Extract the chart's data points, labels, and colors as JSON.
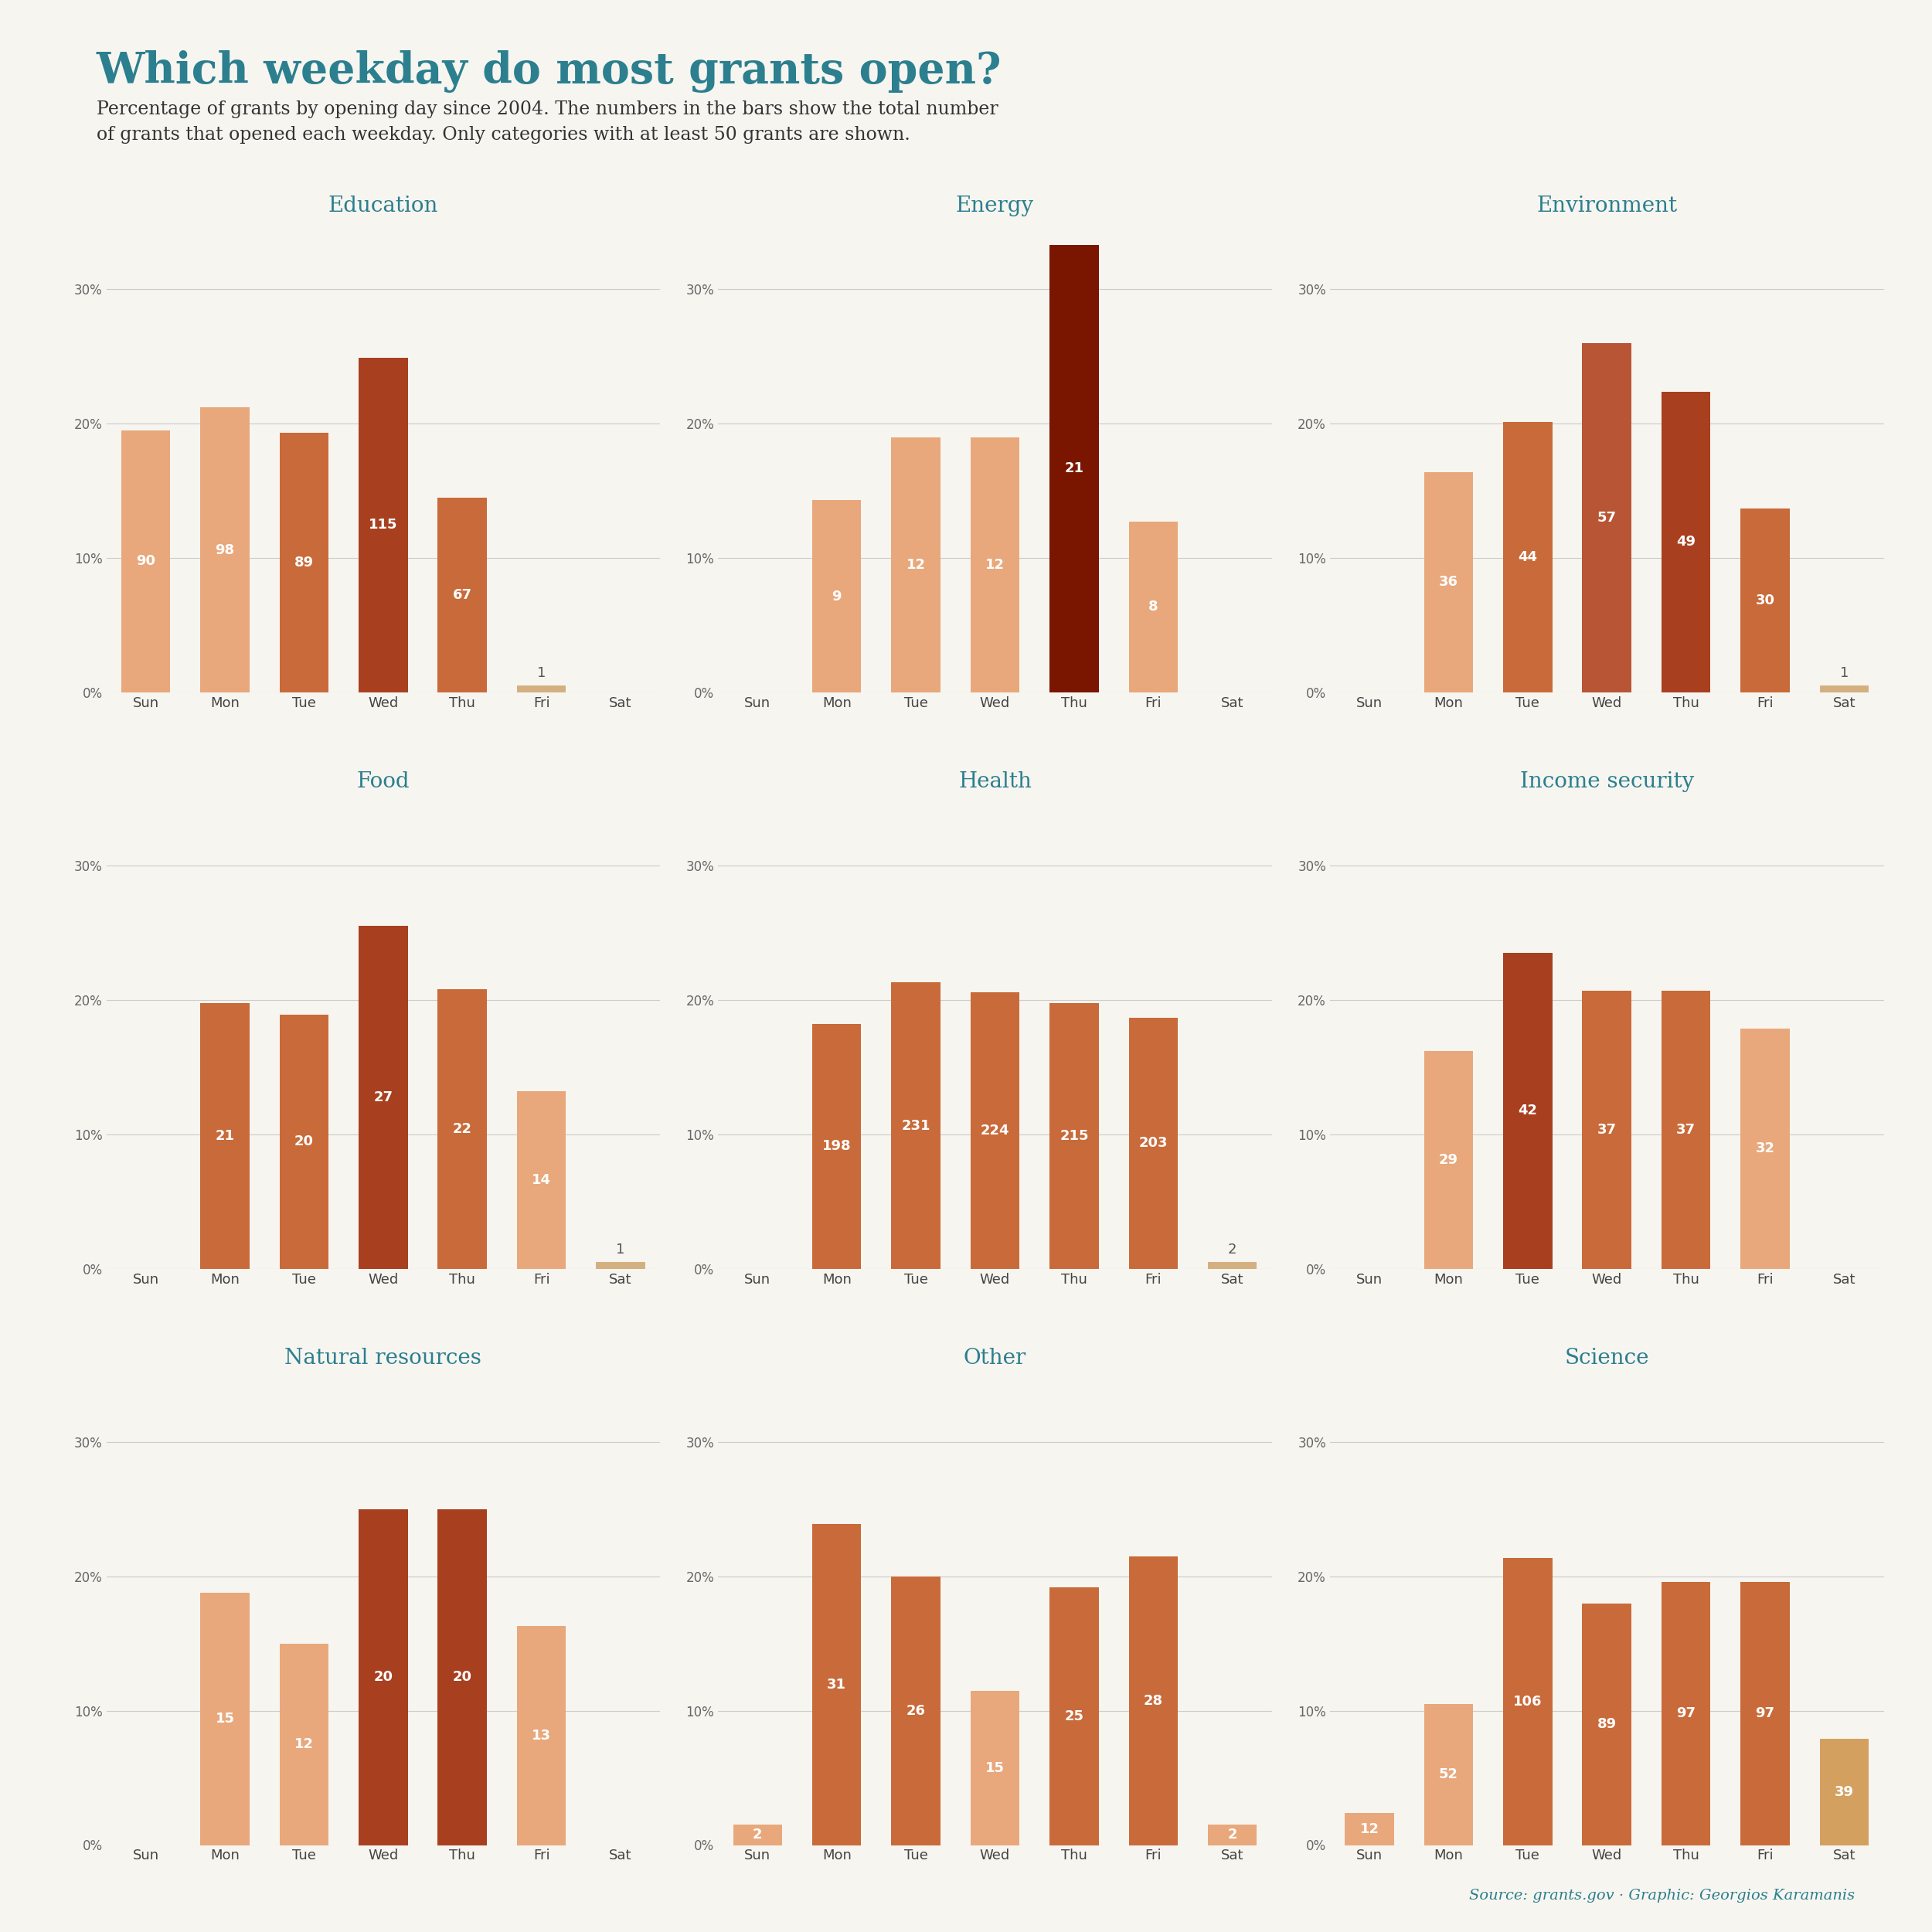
{
  "title": "Which weekday do most grants open?",
  "subtitle": "Percentage of grants by opening day since 2004. The numbers in the bars show the total number\nof grants that opened each weekday. Only categories with at least 50 grants are shown.",
  "title_color": "#2B7F8E",
  "subtitle_color": "#333333",
  "source_text": "Source: grants.gov · Graphic: Georgios Karamanis",
  "background_color": "#F7F5F0",
  "days": [
    "Sun",
    "Mon",
    "Tue",
    "Wed",
    "Thu",
    "Fri",
    "Sat"
  ],
  "categories": [
    "Education",
    "Energy",
    "Environment",
    "Food",
    "Health",
    "Income security",
    "Natural resources",
    "Other",
    "Science"
  ],
  "data": {
    "Education": {
      "counts": [
        90,
        98,
        89,
        115,
        67,
        1,
        null
      ],
      "percents": [
        19.5,
        21.2,
        19.3,
        24.9,
        14.5,
        0.2,
        null
      ]
    },
    "Energy": {
      "counts": [
        null,
        9,
        12,
        12,
        21,
        8,
        null
      ],
      "percents": [
        null,
        14.3,
        19.0,
        19.0,
        33.3,
        12.7,
        null
      ]
    },
    "Environment": {
      "counts": [
        null,
        36,
        44,
        57,
        49,
        30,
        1
      ],
      "percents": [
        null,
        16.4,
        20.1,
        26.0,
        22.4,
        13.7,
        0.5
      ]
    },
    "Food": {
      "counts": [
        null,
        21,
        20,
        27,
        22,
        14,
        1
      ],
      "percents": [
        null,
        19.8,
        18.9,
        25.5,
        20.8,
        13.2,
        0.9
      ]
    },
    "Health": {
      "counts": [
        null,
        198,
        231,
        224,
        215,
        203,
        2
      ],
      "percents": [
        null,
        18.2,
        21.3,
        20.6,
        19.8,
        18.7,
        0.2
      ]
    },
    "Income security": {
      "counts": [
        null,
        29,
        42,
        37,
        37,
        32,
        null
      ],
      "percents": [
        null,
        16.2,
        23.5,
        20.7,
        20.7,
        17.9,
        null
      ]
    },
    "Natural resources": {
      "counts": [
        null,
        15,
        12,
        20,
        20,
        13,
        null
      ],
      "percents": [
        null,
        18.8,
        15.0,
        25.0,
        25.0,
        16.3,
        null
      ]
    },
    "Other": {
      "counts": [
        2,
        31,
        26,
        15,
        25,
        28,
        2
      ],
      "percents": [
        1.5,
        23.9,
        20.0,
        11.5,
        19.2,
        21.5,
        1.5
      ]
    },
    "Science": {
      "counts": [
        12,
        52,
        106,
        89,
        97,
        97,
        39
      ],
      "percents": [
        2.4,
        10.5,
        21.4,
        18.0,
        19.6,
        19.6,
        7.9
      ]
    }
  },
  "bar_colors": {
    "Education": [
      "#E8A87C",
      "#E8A87C",
      "#C96A3A",
      "#A84020",
      "#C96A3A",
      "#E8A87C",
      "#E8A87C"
    ],
    "Energy": [
      "#E8A87C",
      "#E8A87C",
      "#E8A87C",
      "#E8A87C",
      "#7A1500",
      "#E8A87C",
      "#E8A87C"
    ],
    "Environment": [
      "#E8A87C",
      "#E8A87C",
      "#C96A3A",
      "#B85535",
      "#A84020",
      "#C96A3A",
      "#E8A87C"
    ],
    "Food": [
      "#E8A87C",
      "#C96A3A",
      "#C96A3A",
      "#A84020",
      "#C96A3A",
      "#E8A87C",
      "#E8A87C"
    ],
    "Health": [
      "#E8A87C",
      "#C96A3A",
      "#C96A3A",
      "#C96A3A",
      "#C96A3A",
      "#C96A3A",
      "#E8A87C"
    ],
    "Income security": [
      "#E8A87C",
      "#E8A87C",
      "#A84020",
      "#C96A3A",
      "#C96A3A",
      "#E8A87C",
      "#E8A87C"
    ],
    "Natural resources": [
      "#E8A87C",
      "#E8A87C",
      "#E8A87C",
      "#A84020",
      "#A84020",
      "#E8A87C",
      "#E8A87C"
    ],
    "Other": [
      "#E8A87C",
      "#C96A3A",
      "#C96A3A",
      "#E8A87C",
      "#C96A3A",
      "#C96A3A",
      "#E8A87C"
    ],
    "Science": [
      "#E8A87C",
      "#E8A87C",
      "#C96A3A",
      "#C96A3A",
      "#C96A3A",
      "#C96A3A",
      "#D4A060"
    ]
  },
  "ylim": [
    0,
    0.35
  ],
  "yticks": [
    0.0,
    0.1,
    0.2,
    0.3
  ],
  "ytick_labels": [
    "0%",
    "10%",
    "20%",
    "30%"
  ],
  "layout_order": [
    [
      "Education",
      "Energy",
      "Environment"
    ],
    [
      "Food",
      "Health",
      "Income security"
    ],
    [
      "Natural resources",
      "Other",
      "Science"
    ]
  ]
}
